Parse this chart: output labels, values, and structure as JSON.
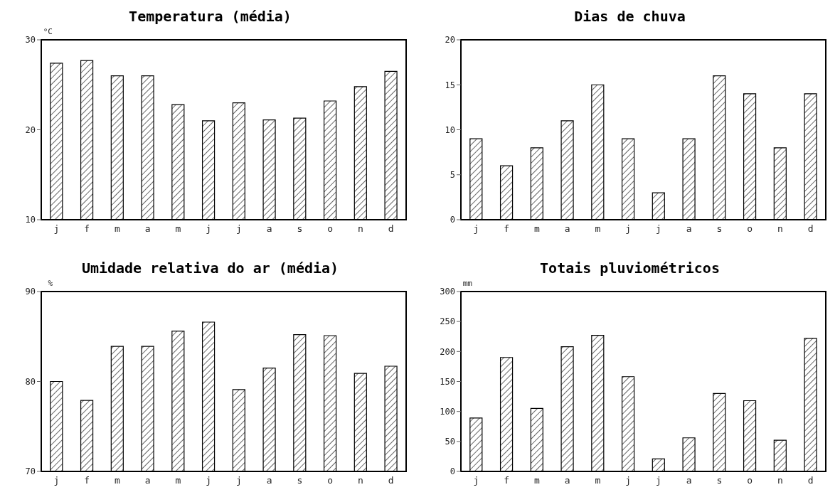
{
  "chart_data": [
    {
      "type": "bar",
      "title": "Temperatura (média)",
      "ylabel": "°C",
      "categories": [
        "j",
        "f",
        "m",
        "a",
        "m",
        "j",
        "j",
        "a",
        "s",
        "o",
        "n",
        "d"
      ],
      "values": [
        27.4,
        27.7,
        26.0,
        26.0,
        22.8,
        21.0,
        23.0,
        21.1,
        21.3,
        23.2,
        24.8,
        26.5
      ],
      "color": "#000000",
      "ylim": [
        10,
        30
      ],
      "yticks": [
        10,
        20,
        30
      ],
      "grid": false
    },
    {
      "type": "bar",
      "title": "Dias de chuva",
      "categories": [
        "j",
        "f",
        "m",
        "a",
        "m",
        "j",
        "j",
        "a",
        "s",
        "o",
        "n",
        "d"
      ],
      "values": [
        9,
        6,
        8,
        11,
        15,
        9,
        3,
        9,
        16,
        14,
        8,
        14
      ],
      "color": "#000000",
      "ylim": [
        0,
        20
      ],
      "yticks": [
        0,
        5,
        10,
        15,
        20
      ],
      "grid": false
    },
    {
      "type": "bar",
      "title": "Umidade relativa do ar (média)",
      "ylabel": "%",
      "categories": [
        "j",
        "f",
        "m",
        "a",
        "m",
        "j",
        "j",
        "a",
        "s",
        "o",
        "n",
        "d"
      ],
      "values": [
        80,
        77.9,
        83.9,
        83.9,
        85.6,
        86.6,
        79.1,
        81.5,
        85.2,
        85.1,
        80.9,
        81.7
      ],
      "color": "#000000",
      "ylim": [
        70,
        90
      ],
      "yticks": [
        70,
        80,
        90
      ],
      "grid": false
    },
    {
      "type": "bar",
      "title": "Totais pluviométricos",
      "ylabel": "mm",
      "categories": [
        "j",
        "f",
        "m",
        "a",
        "m",
        "j",
        "j",
        "a",
        "s",
        "o",
        "n",
        "d"
      ],
      "values": [
        89,
        190,
        105,
        208,
        227,
        158,
        21,
        56,
        130,
        118,
        52,
        222
      ],
      "color": "#000000",
      "ylim": [
        0,
        300
      ],
      "yticks": [
        0,
        50,
        100,
        150,
        200,
        250,
        300
      ],
      "grid": false
    }
  ]
}
